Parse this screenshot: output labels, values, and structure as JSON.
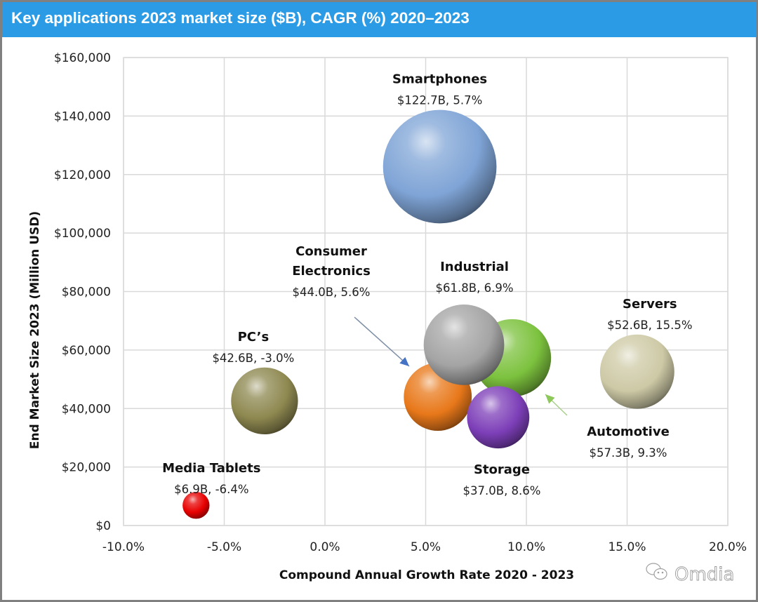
{
  "header": {
    "title": "Key applications 2023 market size ($B), CAGR (%)  2020–2023"
  },
  "watermark": {
    "text": "Omdia",
    "icon": "wechat-icon"
  },
  "chart_data": {
    "type": "bubble",
    "title": "Key applications 2023 market size ($B), CAGR (%)  2020–2023",
    "xlabel": "Compound Annual Growth Rate 2020 - 2023",
    "ylabel": "End Market Size 2023  (Million  USD)",
    "xlim": [
      -10,
      20
    ],
    "ylim": [
      0,
      160000
    ],
    "x_ticks": [
      -10,
      -5,
      0,
      5,
      10,
      15,
      20
    ],
    "x_tick_labels": [
      "-10.0%",
      "-5.0%",
      "0.0%",
      "5.0%",
      "10.0%",
      "15.0%",
      "20.0%"
    ],
    "y_ticks": [
      0,
      20000,
      40000,
      60000,
      80000,
      100000,
      120000,
      140000,
      160000
    ],
    "y_tick_labels": [
      "$0",
      "$20,000",
      "$40,000",
      "$60,000",
      "$80,000",
      "$100,000",
      "$120,000",
      "$140,000",
      "$160,000"
    ],
    "grid": true,
    "legend": "none",
    "bubble_size_metric": "2023 market size",
    "series": [
      {
        "name": "Smartphones",
        "name_lines": [
          "Smartphones"
        ],
        "x": 5.7,
        "y": 122700,
        "size": 122.7,
        "label": "$122.7B, 5.7%",
        "color": "#7fa4d6"
      },
      {
        "name": "Automotive",
        "name_lines": [
          "Automotive"
        ],
        "x": 9.3,
        "y": 57300,
        "size": 57.3,
        "label": "$57.3B, 9.3%",
        "color": "#7cc23e"
      },
      {
        "name": "Industrial",
        "name_lines": [
          "Industrial"
        ],
        "x": 6.9,
        "y": 61800,
        "size": 61.8,
        "label": "$61.8B, 6.9%",
        "color": "#a4a4a4"
      },
      {
        "name": "Consumer Electronics",
        "name_lines": [
          "Consumer",
          "Electronics"
        ],
        "x": 5.6,
        "y": 44000,
        "size": 44.0,
        "label": "$44.0B, 5.6%",
        "color": "#e8781a"
      },
      {
        "name": "Storage",
        "name_lines": [
          "Storage"
        ],
        "x": 8.6,
        "y": 37000,
        "size": 37.0,
        "label": "$37.0B, 8.6%",
        "color": "#7d3fb8"
      },
      {
        "name": "Servers",
        "name_lines": [
          "Servers"
        ],
        "x": 15.5,
        "y": 52600,
        "size": 52.6,
        "label": "$52.6B, 15.5%",
        "color": "#cdc9a6"
      },
      {
        "name": "PC’s",
        "name_lines": [
          "PC’s"
        ],
        "x": -3.0,
        "y": 42600,
        "size": 42.6,
        "label": "$42.6B, -3.0%",
        "color": "#8e8850"
      },
      {
        "name": "Media Tablets",
        "name_lines": [
          "Media Tablets"
        ],
        "x": -6.4,
        "y": 6900,
        "size": 6.9,
        "label": "$6.9B, -6.4%",
        "color": "#e80000"
      }
    ],
    "annotations": [
      {
        "target": "Consumer Electronics",
        "type": "arrow",
        "color": "#4472c4"
      },
      {
        "target": "Automotive",
        "type": "arrow",
        "color": "#8cc85a"
      }
    ]
  }
}
